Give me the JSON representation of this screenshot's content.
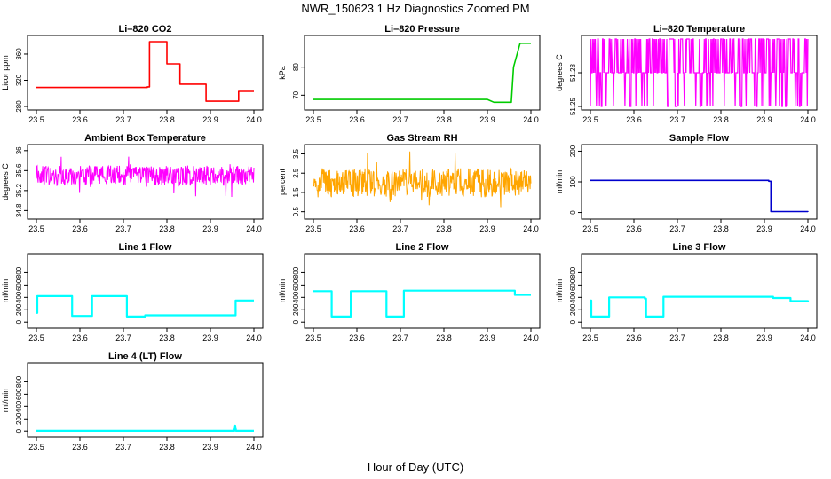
{
  "figure": {
    "title": "NWR_150623  1 Hz Diagnostics Zoomed PM",
    "xlabel": "Hour of Day (UTC)"
  },
  "colors": {
    "red": "#ff0000",
    "green": "#00cc00",
    "magenta": "#ff00ff",
    "orange": "#ffa500",
    "blue": "#0000cd",
    "cyan": "#00ffff"
  },
  "chart_data": [
    {
      "type": "line",
      "title": "Li–820 CO2",
      "ylabel": "Licor ppm",
      "xlim": [
        23.5,
        24.0
      ],
      "ylim": [
        280,
        383
      ],
      "xticks": [
        "23.5",
        "23.6",
        "23.7",
        "23.8",
        "23.9",
        "24.0"
      ],
      "yticks": [
        280,
        320,
        360
      ],
      "color": "red",
      "step": true,
      "series": [
        {
          "x": [
            23.5,
            23.6,
            23.7,
            23.755,
            23.76,
            23.795,
            23.8,
            23.825,
            23.83,
            23.885,
            23.89,
            23.96,
            23.965,
            24.0
          ],
          "values": [
            309,
            309,
            309,
            310,
            379,
            379,
            345,
            345,
            314,
            314,
            288,
            288,
            303,
            303
          ]
        }
      ]
    },
    {
      "type": "line",
      "title": "Li–820 Pressure",
      "ylabel": "kPa",
      "xlim": [
        23.5,
        24.0
      ],
      "ylim": [
        66,
        90
      ],
      "xticks": [
        "23.5",
        "23.6",
        "23.7",
        "23.8",
        "23.9",
        "24.0"
      ],
      "yticks": [
        70,
        80
      ],
      "color": "green",
      "step": false,
      "series": [
        {
          "x": [
            23.5,
            23.9,
            23.915,
            23.955,
            23.96,
            23.975,
            24.0
          ],
          "values": [
            68.5,
            68.5,
            67.5,
            67.5,
            80,
            88.5,
            88.5
          ]
        }
      ]
    },
    {
      "type": "line",
      "title": "Li–820 Temperature",
      "ylabel": "degrees C",
      "xlim": [
        23.5,
        24.0
      ],
      "ylim": [
        51.25,
        51.31
      ],
      "xticks": [
        "23.5",
        "23.6",
        "23.7",
        "23.8",
        "23.9",
        "24.0"
      ],
      "yticks": [
        "51.25",
        "51.28"
      ],
      "color": "magenta",
      "pattern": "binary",
      "levels": [
        51.25,
        51.28,
        51.31
      ]
    },
    {
      "type": "line",
      "title": "Ambient Box Temperature",
      "ylabel": "degrees C",
      "xlim": [
        23.5,
        24.0
      ],
      "ylim": [
        34.7,
        36.05
      ],
      "xticks": [
        "23.5",
        "23.6",
        "23.7",
        "23.8",
        "23.9",
        "24.0"
      ],
      "yticks": [
        34.8,
        35.2,
        35.6,
        36.0
      ],
      "color": "magenta",
      "pattern": "noise",
      "center": 35.5,
      "amp": 0.4
    },
    {
      "type": "line",
      "title": "Gas Stream RH",
      "ylabel": "percent",
      "xlim": [
        23.5,
        24.0
      ],
      "ylim": [
        0.3,
        3.8
      ],
      "xticks": [
        "23.5",
        "23.6",
        "23.7",
        "23.8",
        "23.9",
        "24.0"
      ],
      "yticks": [
        0.5,
        1.5,
        2.5,
        3.5
      ],
      "color": "orange",
      "pattern": "noise",
      "center": 2.0,
      "amp": 1.5
    },
    {
      "type": "line",
      "title": "Sample Flow",
      "ylabel": "ml/min",
      "xlim": [
        23.5,
        24.0
      ],
      "ylim": [
        -10,
        210
      ],
      "xticks": [
        "23.5",
        "23.6",
        "23.7",
        "23.8",
        "23.9",
        "24.0"
      ],
      "yticks": [
        0,
        100,
        200
      ],
      "color": "blue",
      "step": true,
      "series": [
        {
          "x": [
            23.5,
            23.91,
            23.915,
            24.0
          ],
          "values": [
            105,
            102,
            3,
            2
          ]
        }
      ]
    },
    {
      "type": "line",
      "title": "Line 1 Flow",
      "ylabel": "ml/min",
      "xlim": [
        23.5,
        24.0
      ],
      "ylim": [
        -40,
        1050
      ],
      "xticks": [
        "23.5",
        "23.6",
        "23.7",
        "23.8",
        "23.9",
        "24.0"
      ],
      "yticks": [
        0,
        200,
        400,
        600,
        800
      ],
      "color": "cyan",
      "step": true,
      "series": [
        {
          "x": [
            23.5,
            23.502,
            23.58,
            23.582,
            23.625,
            23.628,
            23.705,
            23.708,
            23.75,
            23.955,
            23.958,
            24.0
          ],
          "values": [
            150,
            420,
            420,
            100,
            100,
            420,
            420,
            90,
            110,
            110,
            350,
            350
          ]
        }
      ]
    },
    {
      "type": "line",
      "title": "Line 2 Flow",
      "ylabel": "ml/min",
      "xlim": [
        23.5,
        24.0
      ],
      "ylim": [
        -40,
        1050
      ],
      "xticks": [
        "23.5",
        "23.6",
        "23.7",
        "23.8",
        "23.9",
        "24.0"
      ],
      "yticks": [
        0,
        200,
        400,
        600,
        800
      ],
      "color": "cyan",
      "step": true,
      "series": [
        {
          "x": [
            23.5,
            23.54,
            23.542,
            23.583,
            23.586,
            23.665,
            23.668,
            23.705,
            23.708,
            23.96,
            23.963,
            24.0
          ],
          "values": [
            500,
            500,
            90,
            90,
            500,
            500,
            90,
            90,
            510,
            510,
            440,
            440
          ]
        }
      ]
    },
    {
      "type": "line",
      "title": "Line 3 Flow",
      "ylabel": "ml/min",
      "xlim": [
        23.5,
        24.0
      ],
      "ylim": [
        -40,
        1050
      ],
      "xticks": [
        "23.5",
        "23.6",
        "23.7",
        "23.8",
        "23.9",
        "24.0"
      ],
      "yticks": [
        0,
        200,
        400,
        600,
        800
      ],
      "color": "cyan",
      "step": true,
      "series": [
        {
          "x": [
            23.5,
            23.502,
            23.54,
            23.543,
            23.625,
            23.628,
            23.665,
            23.668,
            23.92,
            23.96,
            24.0
          ],
          "values": [
            350,
            90,
            90,
            400,
            380,
            90,
            90,
            410,
            390,
            340,
            320
          ]
        }
      ]
    },
    {
      "type": "line",
      "title": "Line 4 (LT) Flow",
      "ylabel": "ml/min",
      "xlim": [
        23.5,
        24.0
      ],
      "ylim": [
        -40,
        1050
      ],
      "xticks": [
        "23.5",
        "23.6",
        "23.7",
        "23.8",
        "23.9",
        "24.0"
      ],
      "yticks": [
        0,
        200,
        400,
        600,
        800
      ],
      "color": "cyan",
      "step": false,
      "series": [
        {
          "x": [
            23.5,
            23.955,
            23.957,
            23.959,
            24.0
          ],
          "values": [
            5,
            5,
            90,
            5,
            5
          ]
        }
      ]
    }
  ]
}
